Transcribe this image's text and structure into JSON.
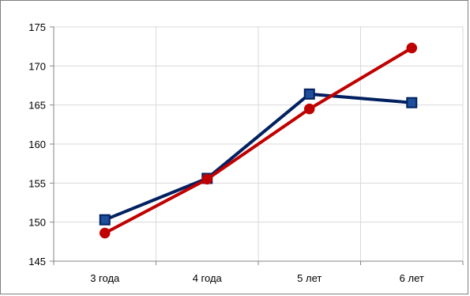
{
  "chart_data": {
    "type": "line",
    "title": "",
    "xlabel": "",
    "ylabel": "",
    "categories": [
      "3 года",
      "4 года",
      "5 лет",
      "6 лет"
    ],
    "ylim": [
      145,
      175
    ],
    "ystep": 5,
    "yticks": [
      "145",
      "150",
      "155",
      "160",
      "165",
      "170",
      "175"
    ],
    "grid": true,
    "legend": "none",
    "series": [
      {
        "values": [
          150.3,
          155.6,
          166.4,
          165.3
        ],
        "color": "#002060",
        "marker": "square",
        "marker_fill": "#1f4e9a"
      },
      {
        "values": [
          148.6,
          155.5,
          164.5,
          172.3
        ],
        "color": "#c00000",
        "marker": "circle",
        "marker_fill": "#c00000"
      }
    ]
  }
}
